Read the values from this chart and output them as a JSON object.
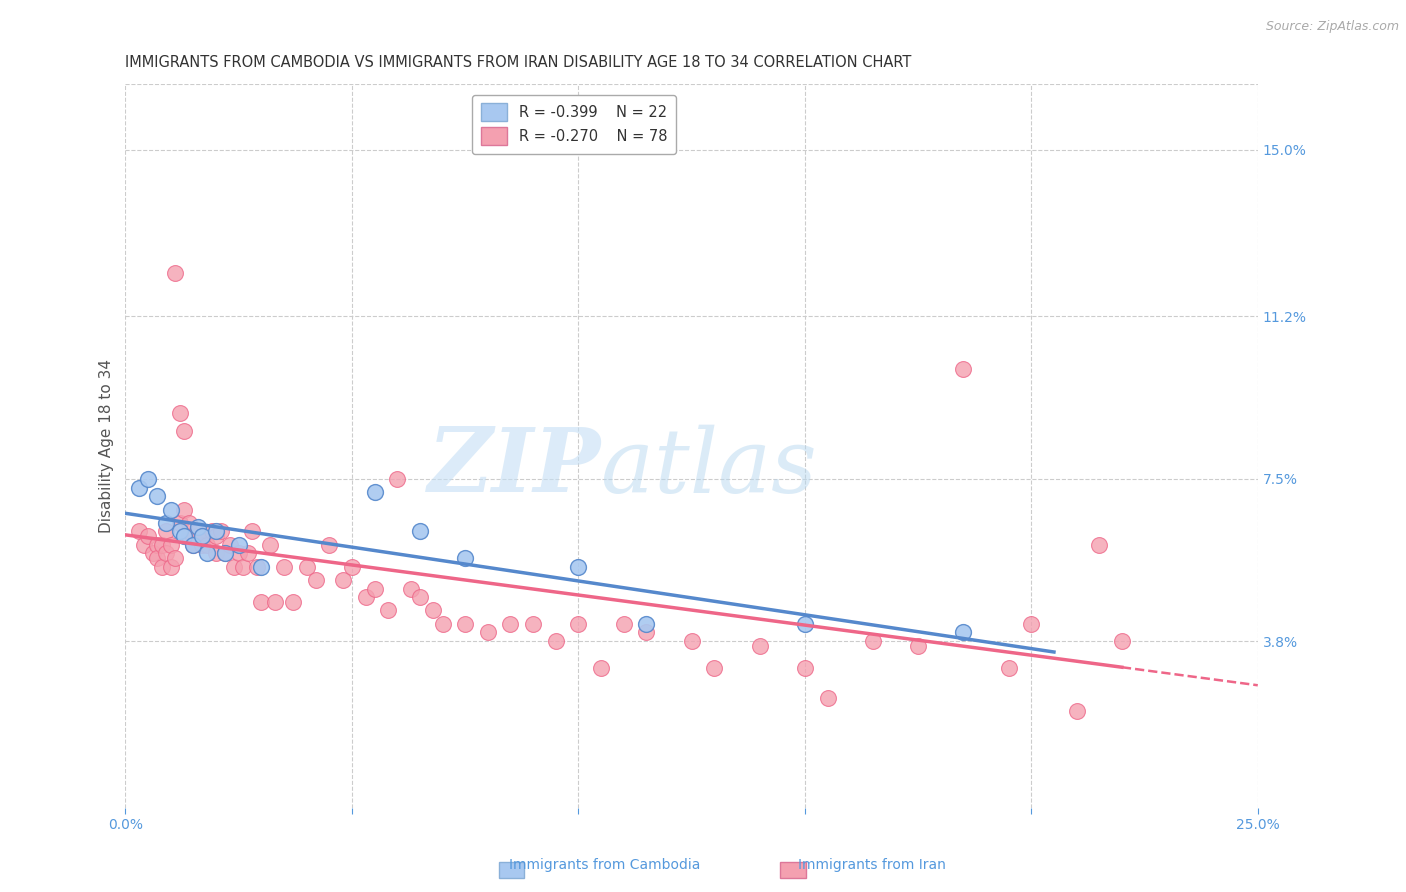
{
  "title": "IMMIGRANTS FROM CAMBODIA VS IMMIGRANTS FROM IRAN DISABILITY AGE 18 TO 34 CORRELATION CHART",
  "source": "Source: ZipAtlas.com",
  "ylabel": "Disability Age 18 to 34",
  "xlim": [
    0.0,
    0.25
  ],
  "ylim": [
    0.0,
    0.165
  ],
  "ytick_labels_right": [
    "15.0%",
    "11.2%",
    "7.5%",
    "3.8%"
  ],
  "ytick_values_right": [
    0.15,
    0.112,
    0.075,
    0.038
  ],
  "r_cambodia": -0.399,
  "n_cambodia": 22,
  "r_iran": -0.27,
  "n_iran": 78,
  "color_cambodia": "#a8c8f0",
  "color_iran": "#f4a0b0",
  "color_cambodia_line": "#5588cc",
  "color_iran_line": "#ee6688",
  "watermark_color": "#d0e8f8",
  "background_color": "#ffffff",
  "grid_color": "#cccccc",
  "title_color": "#333333",
  "label_color": "#5599dd",
  "cambodia_x": [
    0.003,
    0.005,
    0.007,
    0.009,
    0.01,
    0.012,
    0.013,
    0.015,
    0.016,
    0.017,
    0.018,
    0.02,
    0.022,
    0.025,
    0.03,
    0.055,
    0.065,
    0.075,
    0.1,
    0.115,
    0.15,
    0.185
  ],
  "cambodia_y": [
    0.073,
    0.075,
    0.071,
    0.065,
    0.068,
    0.063,
    0.062,
    0.06,
    0.064,
    0.062,
    0.058,
    0.063,
    0.058,
    0.06,
    0.055,
    0.072,
    0.063,
    0.057,
    0.055,
    0.042,
    0.042,
    0.04
  ],
  "iran_x": [
    0.003,
    0.004,
    0.005,
    0.006,
    0.007,
    0.007,
    0.008,
    0.008,
    0.009,
    0.009,
    0.01,
    0.01,
    0.011,
    0.011,
    0.012,
    0.012,
    0.013,
    0.013,
    0.014,
    0.014,
    0.015,
    0.015,
    0.016,
    0.017,
    0.017,
    0.018,
    0.019,
    0.02,
    0.02,
    0.021,
    0.022,
    0.023,
    0.024,
    0.025,
    0.026,
    0.027,
    0.028,
    0.029,
    0.03,
    0.032,
    0.033,
    0.035,
    0.037,
    0.04,
    0.042,
    0.045,
    0.048,
    0.05,
    0.053,
    0.055,
    0.058,
    0.06,
    0.063,
    0.065,
    0.068,
    0.07,
    0.075,
    0.08,
    0.085,
    0.09,
    0.095,
    0.1,
    0.105,
    0.11,
    0.115,
    0.125,
    0.13,
    0.14,
    0.15,
    0.155,
    0.165,
    0.175,
    0.185,
    0.195,
    0.2,
    0.21,
    0.215,
    0.22
  ],
  "iran_y": [
    0.063,
    0.06,
    0.062,
    0.058,
    0.06,
    0.057,
    0.06,
    0.055,
    0.063,
    0.058,
    0.06,
    0.055,
    0.057,
    0.122,
    0.065,
    0.09,
    0.068,
    0.086,
    0.062,
    0.065,
    0.06,
    0.062,
    0.063,
    0.06,
    0.062,
    0.06,
    0.063,
    0.062,
    0.058,
    0.063,
    0.058,
    0.06,
    0.055,
    0.058,
    0.055,
    0.058,
    0.063,
    0.055,
    0.047,
    0.06,
    0.047,
    0.055,
    0.047,
    0.055,
    0.052,
    0.06,
    0.052,
    0.055,
    0.048,
    0.05,
    0.045,
    0.075,
    0.05,
    0.048,
    0.045,
    0.042,
    0.042,
    0.04,
    0.042,
    0.042,
    0.038,
    0.042,
    0.032,
    0.042,
    0.04,
    0.038,
    0.032,
    0.037,
    0.032,
    0.025,
    0.038,
    0.037,
    0.1,
    0.032,
    0.042,
    0.022,
    0.06,
    0.038
  ]
}
